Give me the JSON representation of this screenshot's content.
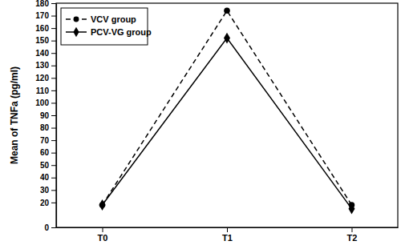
{
  "chart_data": {
    "type": "line",
    "y_label": "Mean of TNFa (pg/ml)",
    "categories": [
      "T0",
      "T1",
      "T2"
    ],
    "series": [
      {
        "name": "VCV group",
        "color": "#000000",
        "marker": "circle",
        "line_style": "dashed",
        "values": [
          18,
          174,
          18
        ]
      },
      {
        "name": "PCV-VG group",
        "color": "#000000",
        "marker": "diamond",
        "line_style": "solid",
        "values": [
          18,
          152,
          15
        ]
      }
    ],
    "ylim": [
      0,
      180
    ],
    "yticks": [
      0,
      20,
      30,
      40,
      50,
      60,
      70,
      80,
      90,
      100,
      110,
      120,
      130,
      140,
      150,
      160,
      170,
      180
    ],
    "grid": false,
    "legend": "upper left"
  }
}
